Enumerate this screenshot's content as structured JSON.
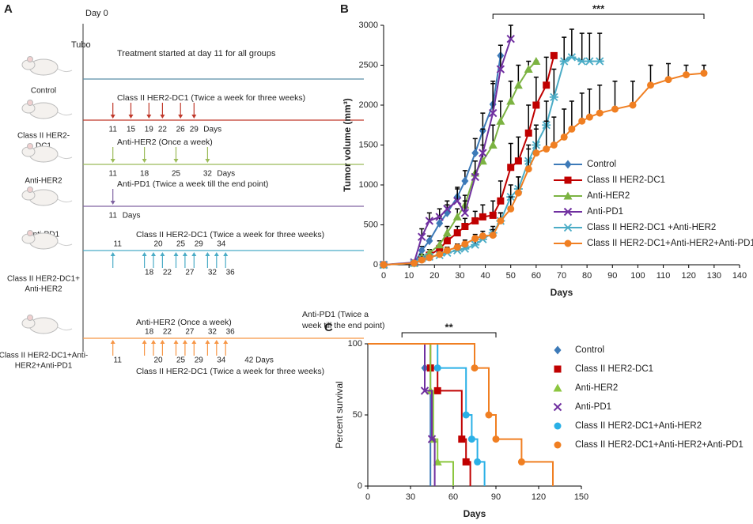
{
  "schedule": {
    "label": "A",
    "day0": "Day 0",
    "tumor": "Tubo",
    "start_note": "Treatment started at day 11 for all groups",
    "groups": [
      {
        "name_lines": [
          "Control"
        ],
        "color": "#5b8fa8",
        "days": []
      },
      {
        "name_lines": [
          "Class II HER2-",
          "DC1"
        ],
        "color": "#c0392b",
        "note": "Class II HER2-DC1 (Twice a week for three weeks)",
        "days": [
          11,
          15,
          19,
          22,
          26,
          29
        ],
        "end_label": "Days"
      },
      {
        "name_lines": [
          "Anti-HER2"
        ],
        "color": "#9bbb59",
        "note": "Anti-HER2 (Once a week)",
        "days": [
          11,
          18,
          25,
          32
        ],
        "end_label": "Days"
      },
      {
        "name_lines": [
          "Anti-PD1"
        ],
        "color": "#8064a2",
        "note": "Anti-PD1 (Twice a week till the end point)",
        "days": [
          11
        ],
        "end_label": "Days"
      },
      {
        "name_lines": [
          "Class II HER2-DC1+",
          "Anti-HER2"
        ],
        "color": "#4bacc6",
        "note": "Class II HER2-DC1 (Twice a week for three weeks)",
        "days": [
          11,
          18,
          20,
          22,
          25,
          27,
          29,
          32,
          34,
          36
        ]
      },
      {
        "name_lines": [
          "Class II HER2-DC1+Anti-",
          "HER2+Anti-PD1"
        ],
        "color": "#f79646",
        "note": "Anti-HER2 (Once a week)",
        "note_below": "Class II HER2-DC1 (Twice a week for three weeks)",
        "note_right": [
          "Anti-PD1 (Twice a",
          "week till the end point)"
        ],
        "days": [
          11,
          18,
          20,
          22,
          25,
          27,
          29,
          32,
          34,
          36
        ],
        "end_label": "42 Days"
      }
    ]
  },
  "chart_data": [
    {
      "type": "line",
      "label": "B",
      "xlabel": "Days",
      "ylabel": "Tumor volume (mm³)",
      "xlim": [
        0,
        140
      ],
      "xticks": [
        0,
        10,
        20,
        30,
        40,
        50,
        60,
        70,
        80,
        90,
        100,
        110,
        120,
        130,
        140
      ],
      "ylim": [
        0,
        3000
      ],
      "yticks": [
        0,
        500,
        1000,
        1500,
        2000,
        2500,
        3000
      ],
      "significance": {
        "label": "***",
        "x": [
          43,
          126
        ]
      },
      "series": [
        {
          "name": "Control",
          "color": "#3d7ab8",
          "marker": "diamond",
          "x": [
            0,
            12,
            15,
            18,
            22,
            25,
            29,
            32,
            36,
            39,
            43,
            46
          ],
          "values": [
            0,
            20,
            180,
            300,
            520,
            650,
            850,
            1050,
            1400,
            1680,
            2010,
            2620
          ],
          "errors": [
            0,
            10,
            50,
            60,
            80,
            100,
            120,
            130,
            180,
            220,
            260,
            0
          ]
        },
        {
          "name": "Class II HER2-DC1",
          "color": "#c00000",
          "marker": "square",
          "x": [
            0,
            12,
            15,
            18,
            22,
            25,
            29,
            32,
            36,
            39,
            43,
            46,
            50,
            53,
            57,
            60,
            64,
            67
          ],
          "values": [
            0,
            20,
            80,
            120,
            200,
            300,
            400,
            480,
            550,
            600,
            620,
            800,
            1220,
            1300,
            1650,
            2000,
            2250,
            2620
          ],
          "errors": [
            0,
            10,
            30,
            40,
            50,
            60,
            80,
            100,
            120,
            150,
            180,
            250,
            300,
            300,
            350,
            350,
            350,
            0
          ]
        },
        {
          "name": "Anti-HER2",
          "color": "#7cb342",
          "marker": "triangle",
          "x": [
            0,
            12,
            15,
            18,
            22,
            25,
            29,
            32,
            36,
            39,
            43,
            46,
            50,
            53,
            57,
            60
          ],
          "values": [
            0,
            20,
            100,
            150,
            250,
            400,
            600,
            750,
            1150,
            1300,
            1500,
            1800,
            2050,
            2250,
            2450,
            2550
          ],
          "errors": [
            0,
            10,
            30,
            40,
            50,
            80,
            100,
            120,
            150,
            200,
            250,
            250,
            250,
            250,
            100,
            0
          ]
        },
        {
          "name": "Anti-PD1",
          "color": "#7030a0",
          "marker": "x",
          "x": [
            0,
            12,
            15,
            18,
            22,
            25,
            29,
            32,
            36,
            39,
            43,
            46,
            50
          ],
          "values": [
            0,
            30,
            350,
            550,
            600,
            700,
            800,
            650,
            1100,
            1400,
            1900,
            2450,
            2830
          ],
          "errors": [
            0,
            20,
            100,
            100,
            100,
            100,
            150,
            150,
            200,
            300,
            400,
            300,
            170
          ]
        },
        {
          "name": "Class II HER2-DC1 +Anti-HER2",
          "color": "#4bacc6",
          "marker": "asterisk",
          "x": [
            0,
            12,
            15,
            18,
            22,
            25,
            29,
            32,
            36,
            39,
            43,
            46,
            50,
            53,
            57,
            60,
            64,
            67,
            71,
            74,
            78,
            81,
            85
          ],
          "values": [
            0,
            20,
            80,
            100,
            120,
            150,
            180,
            200,
            250,
            320,
            400,
            550,
            850,
            950,
            1300,
            1500,
            1750,
            2100,
            2550,
            2600,
            2550,
            2550,
            2550
          ],
          "errors": [
            0,
            10,
            20,
            20,
            30,
            30,
            40,
            40,
            50,
            60,
            80,
            100,
            150,
            150,
            200,
            250,
            300,
            350,
            300,
            350,
            350,
            350,
            350
          ]
        },
        {
          "name": "Class II HER2-DC1+Anti-HER2+Anti-PD1",
          "color": "#f07f22",
          "marker": "circle",
          "x": [
            0,
            12,
            15,
            18,
            22,
            25,
            29,
            32,
            36,
            39,
            43,
            46,
            50,
            53,
            57,
            60,
            64,
            67,
            71,
            74,
            78,
            81,
            85,
            91,
            98,
            105,
            112,
            119,
            126
          ],
          "values": [
            0,
            20,
            60,
            90,
            130,
            180,
            220,
            260,
            330,
            360,
            370,
            550,
            700,
            900,
            1200,
            1400,
            1450,
            1500,
            1600,
            1700,
            1800,
            1850,
            1900,
            1950,
            2000,
            2250,
            2320,
            2380,
            2400
          ],
          "errors": [
            0,
            10,
            20,
            30,
            30,
            40,
            40,
            50,
            50,
            60,
            70,
            100,
            150,
            200,
            250,
            300,
            350,
            350,
            350,
            350,
            350,
            350,
            350,
            350,
            300,
            250,
            200,
            120,
            100
          ]
        }
      ]
    },
    {
      "type": "survival",
      "label": "C",
      "xlabel": "Days",
      "ylabel": "Percent survival",
      "xlim": [
        0,
        150
      ],
      "xticks": [
        0,
        30,
        60,
        90,
        120,
        150
      ],
      "ylim": [
        0,
        100
      ],
      "yticks": [
        0,
        50,
        100
      ],
      "significance": {
        "label": "**",
        "x": [
          24,
          90
        ]
      },
      "series": [
        {
          "name": "Control",
          "color": "#3d7ab8",
          "marker": "diamond",
          "x": [
            0,
            40,
            44
          ],
          "values": [
            100,
            83,
            0
          ]
        },
        {
          "name": "Class II HER2-DC1",
          "color": "#c00000",
          "marker": "square",
          "x": [
            0,
            44,
            49,
            66,
            69,
            72
          ],
          "values": [
            100,
            83,
            67,
            33,
            17,
            0
          ]
        },
        {
          "name": "Anti-HER2",
          "color": "#8cc63f",
          "marker": "triangle",
          "x": [
            0,
            44,
            46,
            49,
            60
          ],
          "values": [
            100,
            67,
            33,
            17,
            0
          ]
        },
        {
          "name": "Anti-PD1",
          "color": "#7030a0",
          "marker": "x",
          "x": [
            0,
            40,
            45,
            47
          ],
          "values": [
            100,
            67,
            33,
            0
          ]
        },
        {
          "name": "Class II HER2-DC1+Anti-HER2",
          "color": "#2ab0e6",
          "marker": "circle",
          "x": [
            0,
            49,
            69,
            73,
            77,
            82
          ],
          "values": [
            100,
            83,
            50,
            33,
            17,
            0
          ]
        },
        {
          "name": "Class II HER2-DC1+Anti-HER2+Anti-PD1",
          "color": "#f07f22",
          "marker": "circle",
          "x": [
            0,
            75,
            85,
            90,
            108,
            130
          ],
          "values": [
            100,
            83,
            50,
            33,
            17,
            0
          ]
        }
      ]
    }
  ]
}
